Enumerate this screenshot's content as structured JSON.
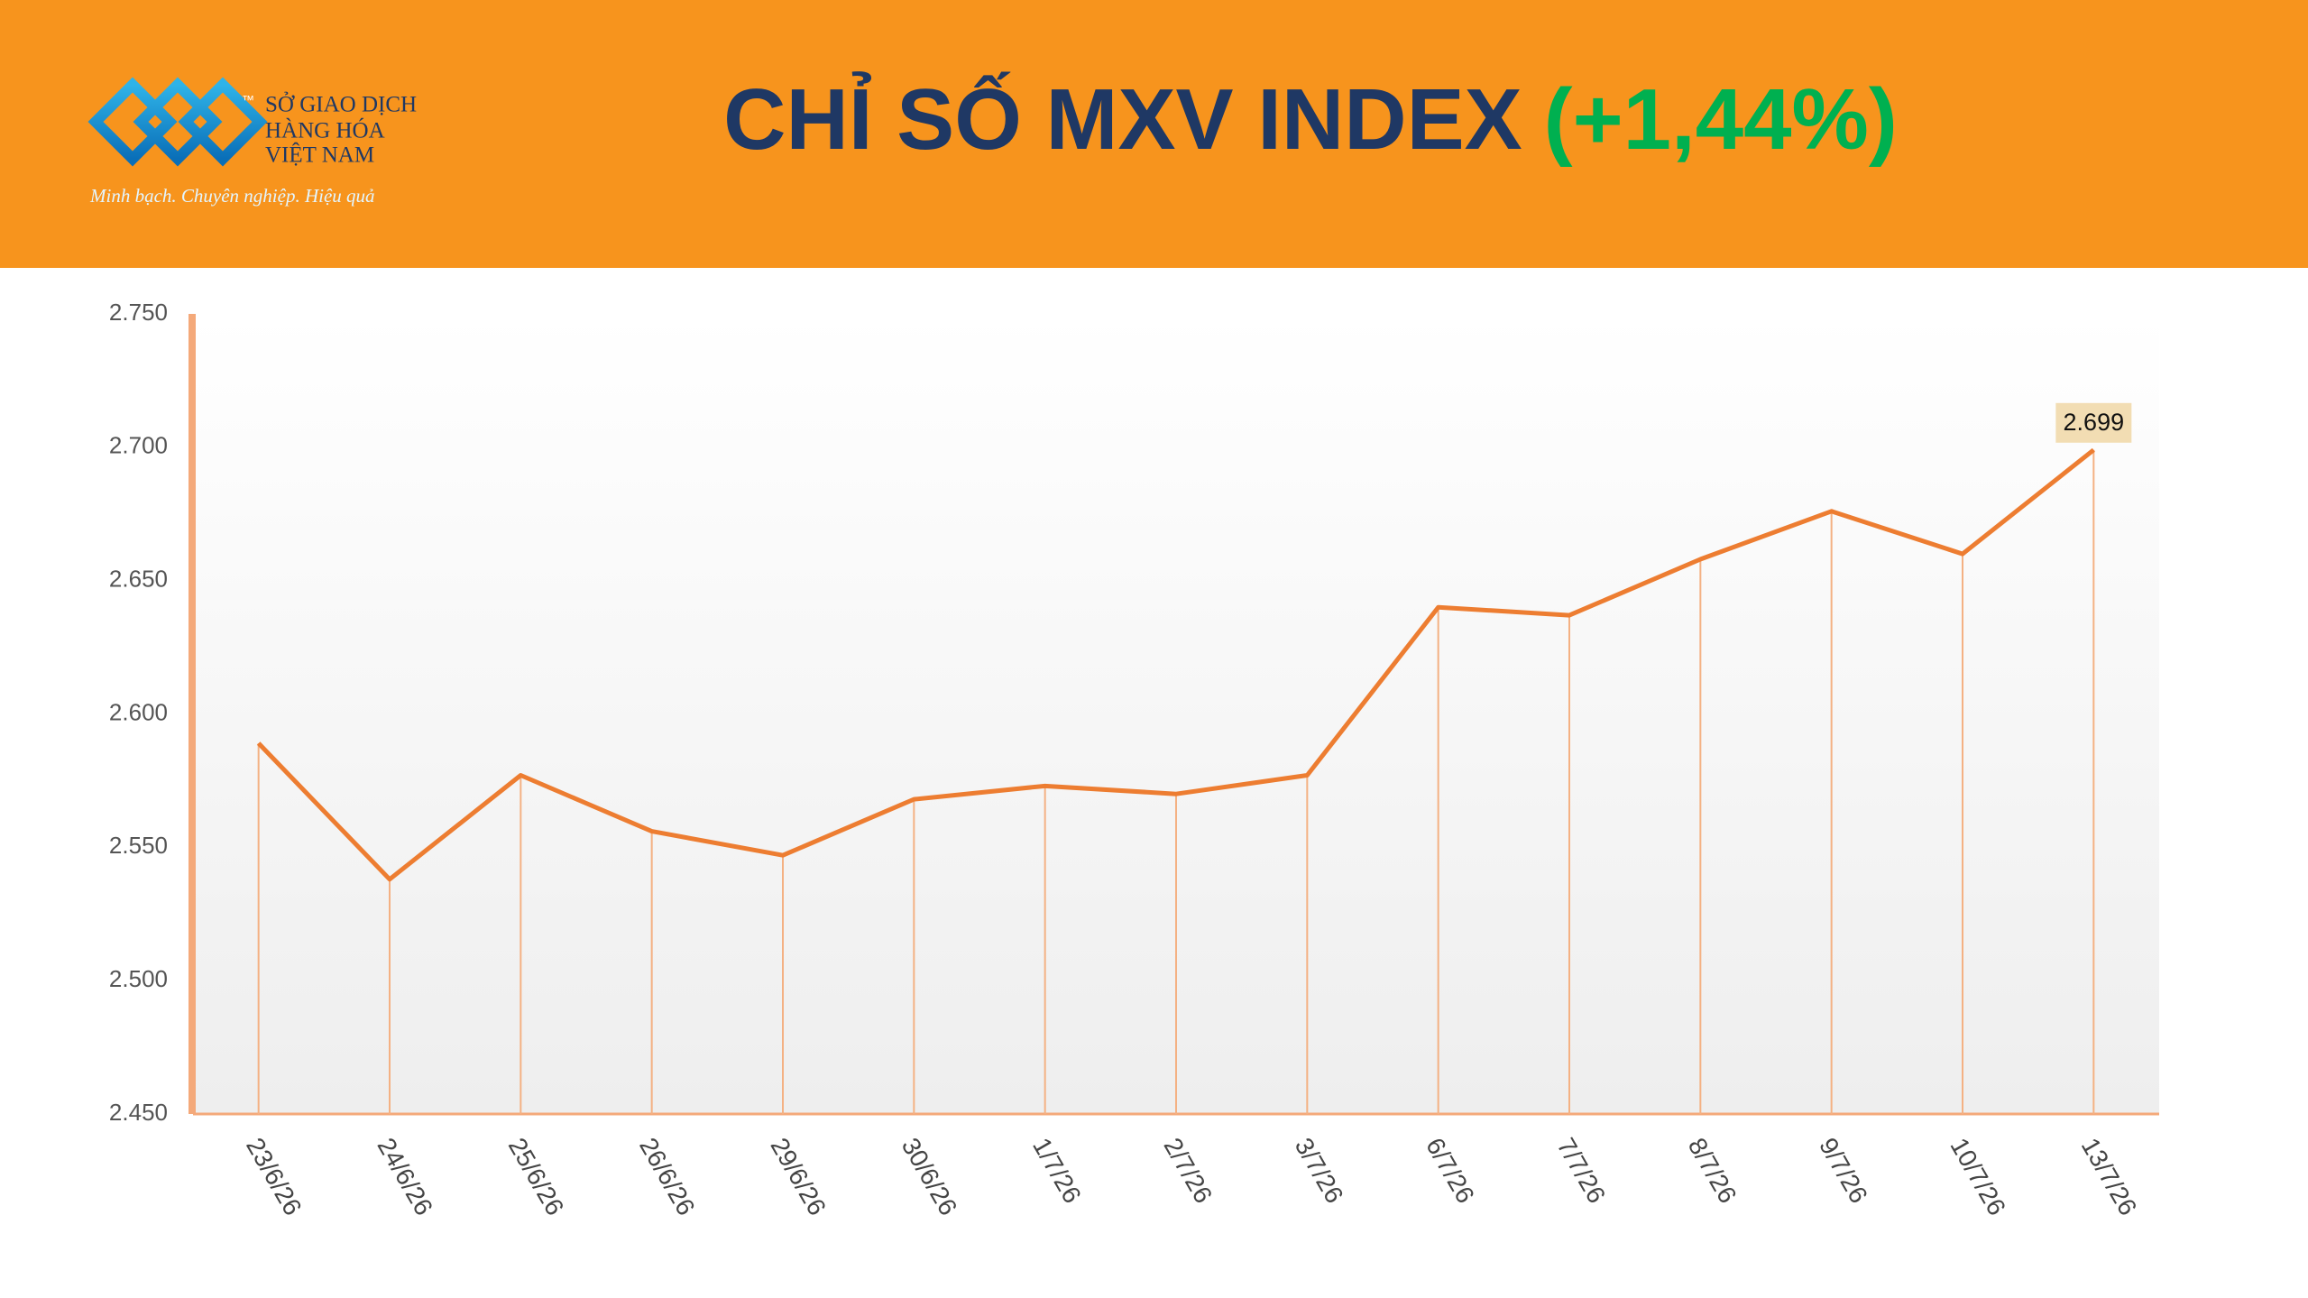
{
  "header": {
    "logo_lines": [
      "SỞ GIAO DỊCH",
      "HÀNG HÓA",
      "VIỆT NAM"
    ],
    "trademark": "™",
    "tagline": "Minh bạch. Chuyên nghiệp. Hiệu quả"
  },
  "chart_data": {
    "type": "line",
    "title": "CHỈ SỐ MXV INDEX",
    "subtitle": "(+1,44%)",
    "categories": [
      "23/6/26",
      "24/6/26",
      "25/6/26",
      "26/6/26",
      "29/6/26",
      "30/6/26",
      "1/7/26",
      "2/7/26",
      "3/7/26",
      "6/7/26",
      "7/7/26",
      "8/7/26",
      "9/7/26",
      "10/7/26",
      "13/7/26"
    ],
    "values": [
      2589,
      2538,
      2577,
      2556,
      2547,
      2568,
      2573,
      2570,
      2577,
      2640,
      2637,
      2658,
      2676,
      2660,
      2699
    ],
    "value_labels": [
      null,
      null,
      null,
      null,
      null,
      null,
      null,
      null,
      null,
      null,
      null,
      null,
      null,
      null,
      "2.699"
    ],
    "color": "#ED7D31",
    "ylim": [
      2450,
      2750
    ],
    "yticks": [
      {
        "value": 2450,
        "label": "2.450"
      },
      {
        "value": 2500,
        "label": "2.500"
      },
      {
        "value": 2550,
        "label": "2.550"
      },
      {
        "value": 2600,
        "label": "2.600"
      },
      {
        "value": 2650,
        "label": "2.650"
      },
      {
        "value": 2700,
        "label": "2.700"
      },
      {
        "value": 2750,
        "label": "2.750"
      }
    ],
    "grid": false
  }
}
